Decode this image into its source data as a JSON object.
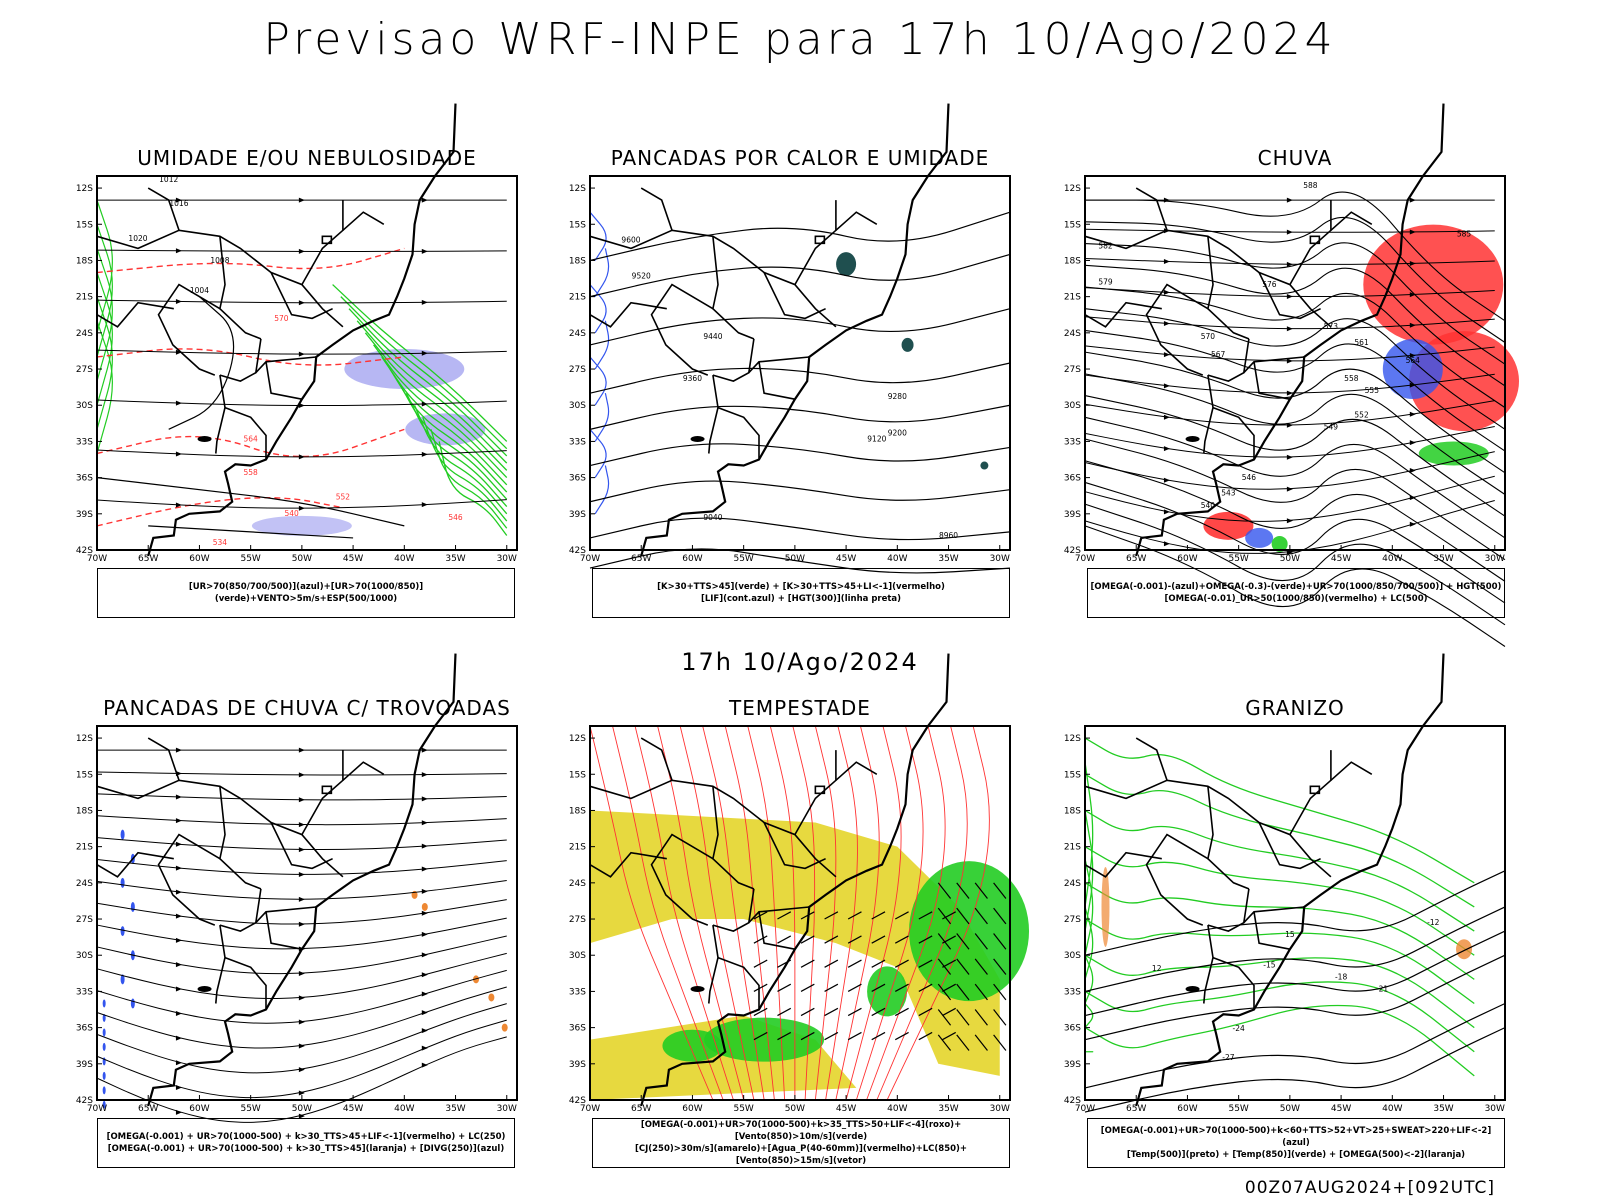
{
  "header": {
    "title": "Previsao WRF-INPE  para 17h 10/Ago/2024",
    "mid_time": "17h 10/Ago/2024",
    "footer": "00Z07AUG2024+[092UTC]"
  },
  "colors": {
    "contour": "#000000",
    "red": "#ff3333",
    "green": "#22cc22",
    "blue": "#3355ee",
    "purple": "#9999ee",
    "yellow": "#e6d735",
    "teal": "#1f4f4f",
    "orange": "#ee8833"
  },
  "axes": {
    "lat_ticks": [
      "12S",
      "15S",
      "18S",
      "21S",
      "24S",
      "27S",
      "30S",
      "33S",
      "36S",
      "39S",
      "42S"
    ],
    "lon_ticks": [
      "70W",
      "65W",
      "60W",
      "55W",
      "50W",
      "45W",
      "40W",
      "35W",
      "30W"
    ]
  },
  "chart_data": [
    {
      "type": "heatmap",
      "title": "UMIDADE E/OU NEBULOSIDADE",
      "legend": [
        "[UR>70(850/700/500)](azul)+[UR>70(1000/850)](verde)+VENTO>5m/s+ESP(500/1000)"
      ],
      "contour_labels": [
        "1012",
        "1016",
        "1020",
        "1008",
        "1004",
        "570",
        "564",
        "558",
        "552",
        "546",
        "540",
        "534"
      ]
    },
    {
      "type": "heatmap",
      "title": "PANCADAS POR CALOR E UMIDADE",
      "legend": [
        "[K>30+TTS>45](verde) + [K>30+TTS>45+LI<-1](vermelho)",
        "[LIF](cont.azul) + [HGT(300)](linha preta)"
      ],
      "contour_labels": [
        "9600",
        "9520",
        "9440",
        "9360",
        "9280",
        "9200",
        "9120",
        "9040",
        "8960"
      ]
    },
    {
      "type": "heatmap",
      "title": "CHUVA",
      "legend": [
        "[OMEGA(-0.001)-(azul)+OMEGA(-0.3)-(verde)+UR>70(1000/850/700/500)] + HGT(500)",
        "[OMEGA(-0.01)_UR>50(1000/850)(vermelho) + LC(500)"
      ],
      "contour_labels": [
        "588",
        "585",
        "582",
        "579",
        "576",
        "573",
        "570",
        "567",
        "564",
        "561",
        "558",
        "555",
        "552",
        "549",
        "546",
        "543",
        "540"
      ]
    },
    {
      "type": "heatmap",
      "title": "PANCADAS DE CHUVA C/ TROVOADAS",
      "legend": [
        "[OMEGA(-0.001) + UR>70(1000-500) + k>30_TTS>45+LIF<-1](vermelho) + LC(250)",
        "[OMEGA(-0.001) + UR>70(1000-500) + k>30_TTS>45](laranja) + [DIVG(250)](azul)"
      ],
      "contour_labels": []
    },
    {
      "type": "heatmap",
      "title": "TEMPESTADE",
      "legend": [
        "[OMEGA(-0.001)+UR>70(1000-500)+k>35_TTS>50+LIF<-4](roxo)+[Vento(850)>10m/s](verde)",
        "[CJ(250)>30m/s](amarelo)+[Agua_P(40-60mm)](vermelho)+LC(850)+[Vento(850)>15m/s](vetor)"
      ],
      "contour_labels": []
    },
    {
      "type": "heatmap",
      "title": "GRANIZO",
      "legend": [
        "[OMEGA(-0.001)+UR>70(1000-500)+k<60+TTS>52+VT>25+SWEAT>220+LIF<-2](azul)",
        "[Temp(500)](preto) + [Temp(850)](verde) + [OMEGA(500)<-2](laranja)"
      ],
      "contour_labels": [
        "-12",
        "-15",
        "-18",
        "-21",
        "-24",
        "-27",
        "12",
        "15"
      ]
    }
  ]
}
